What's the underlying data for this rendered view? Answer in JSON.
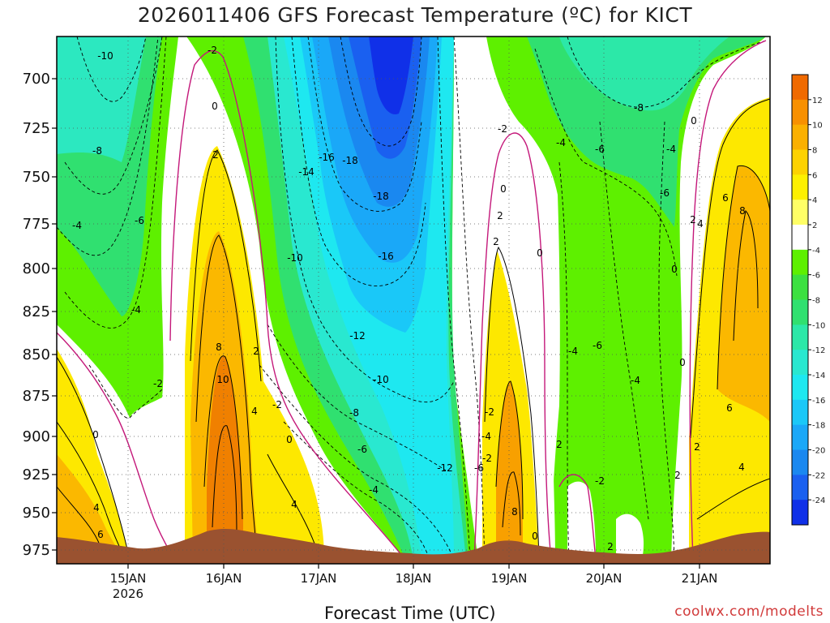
{
  "chart_data": {
    "type": "heatmap",
    "title": "2026011406 GFS Forecast Temperature (ºC) for KICT",
    "xlabel": "Forecast Time (UTC)",
    "ylabel": "",
    "credit": "coolwx.com/modelts",
    "y_axis": {
      "quantity": "pressure (hPa)",
      "inverted": true,
      "ticks": [
        700,
        725,
        750,
        775,
        800,
        825,
        850,
        875,
        900,
        925,
        950,
        975
      ]
    },
    "x_axis": {
      "ticks": [
        "15JAN",
        "16JAN",
        "17JAN",
        "18JAN",
        "19JAN",
        "20JAN",
        "21JAN"
      ],
      "year_label": "2026"
    },
    "colorbar": {
      "levels": [
        12,
        10,
        8,
        6,
        4,
        2,
        -4,
        -6,
        -8,
        -10,
        -12,
        -14,
        -16,
        -18,
        -20,
        -22,
        -24
      ],
      "colors": [
        "#f06a00",
        "#f89000",
        "#fbb000",
        "#fdd200",
        "#fdf000",
        "#ffff66",
        "#ffffff",
        "#5ef000",
        "#3ce040",
        "#30e070",
        "#2ce8a8",
        "#29e8d0",
        "#1ee8f0",
        "#1ac8f8",
        "#1aa8f8",
        "#1a88f0",
        "#1a60f0",
        "#1030e8"
      ]
    },
    "contour_labels": [
      "-10",
      "-8",
      "-4",
      "-6",
      "-4",
      "-2",
      "-2",
      "0",
      "2",
      "8",
      "10",
      "2",
      "4",
      "-2",
      "0",
      "4",
      "0",
      "4",
      "6",
      "-14",
      "-16",
      "-18",
      "-18",
      "-10",
      "-16",
      "-12",
      "-10",
      "-8",
      "-6",
      "-4",
      "-12",
      "-6",
      "-2",
      "0",
      "2",
      "0",
      "-2",
      "-4",
      "8",
      "0",
      "-4",
      "-6",
      "-8",
      "-4",
      "-6",
      "2",
      "-2",
      "-4",
      "0",
      "-4",
      "-6",
      "2",
      "0",
      "0",
      "2",
      "4",
      "6",
      "8",
      "2",
      "4",
      "6",
      "-2",
      "2",
      "2"
    ],
    "series": [
      {
        "name": "",
        "x": [
          "15JAN",
          "16JAN",
          "17JAN",
          "18JAN",
          "19JAN",
          "20JAN",
          "21JAN"
        ],
        "temperature_at_850": [
          -2,
          8,
          -10,
          -12,
          4,
          -4,
          6
        ]
      }
    ],
    "grid": true
  }
}
